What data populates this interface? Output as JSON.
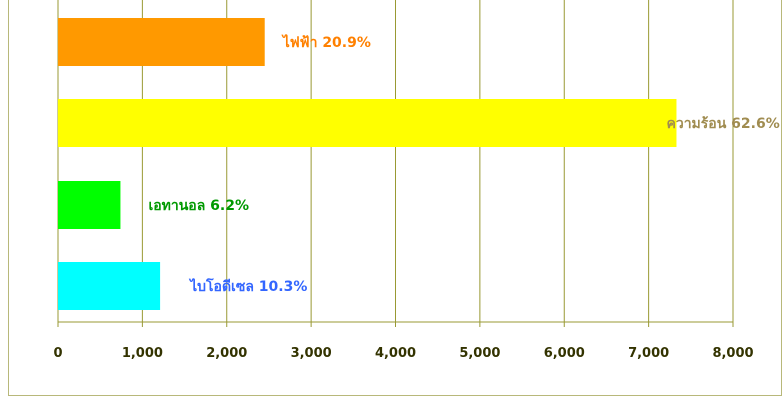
{
  "chart_data": {
    "type": "bar",
    "orientation": "horizontal",
    "categories": [
      "ไฟฟ้า",
      "ความร้อน",
      "เอทานอล",
      "ไบโอดีเซล"
    ],
    "values": [
      2450,
      7330,
      740,
      1210
    ],
    "percent_labels": [
      "20.9%",
      "62.6%",
      "6.2%",
      "10.3%"
    ],
    "data_labels": [
      "ไฟฟ้า  20.9%",
      "ความร้อน  62.6%",
      "เอทานอล  6.2%",
      "ไบโอดีเซล  10.3%"
    ],
    "bar_colors": [
      "#ff9900",
      "#ffff00",
      "#00ff00",
      "#00ffff"
    ],
    "label_colors": [
      "#ff8000",
      "#a08c50",
      "#009900",
      "#3366ff"
    ],
    "xlim": [
      0,
      8000
    ],
    "x_ticks": [
      0,
      1000,
      2000,
      3000,
      4000,
      5000,
      6000,
      7000,
      8000
    ],
    "x_tick_labels": [
      "0",
      "1,000",
      "2,000",
      "3,000",
      "4,000",
      "5,000",
      "6,000",
      "7,000",
      "8,000"
    ],
    "grid": true,
    "grid_color": "#999933",
    "title": "",
    "xlabel": "",
    "ylabel": ""
  }
}
